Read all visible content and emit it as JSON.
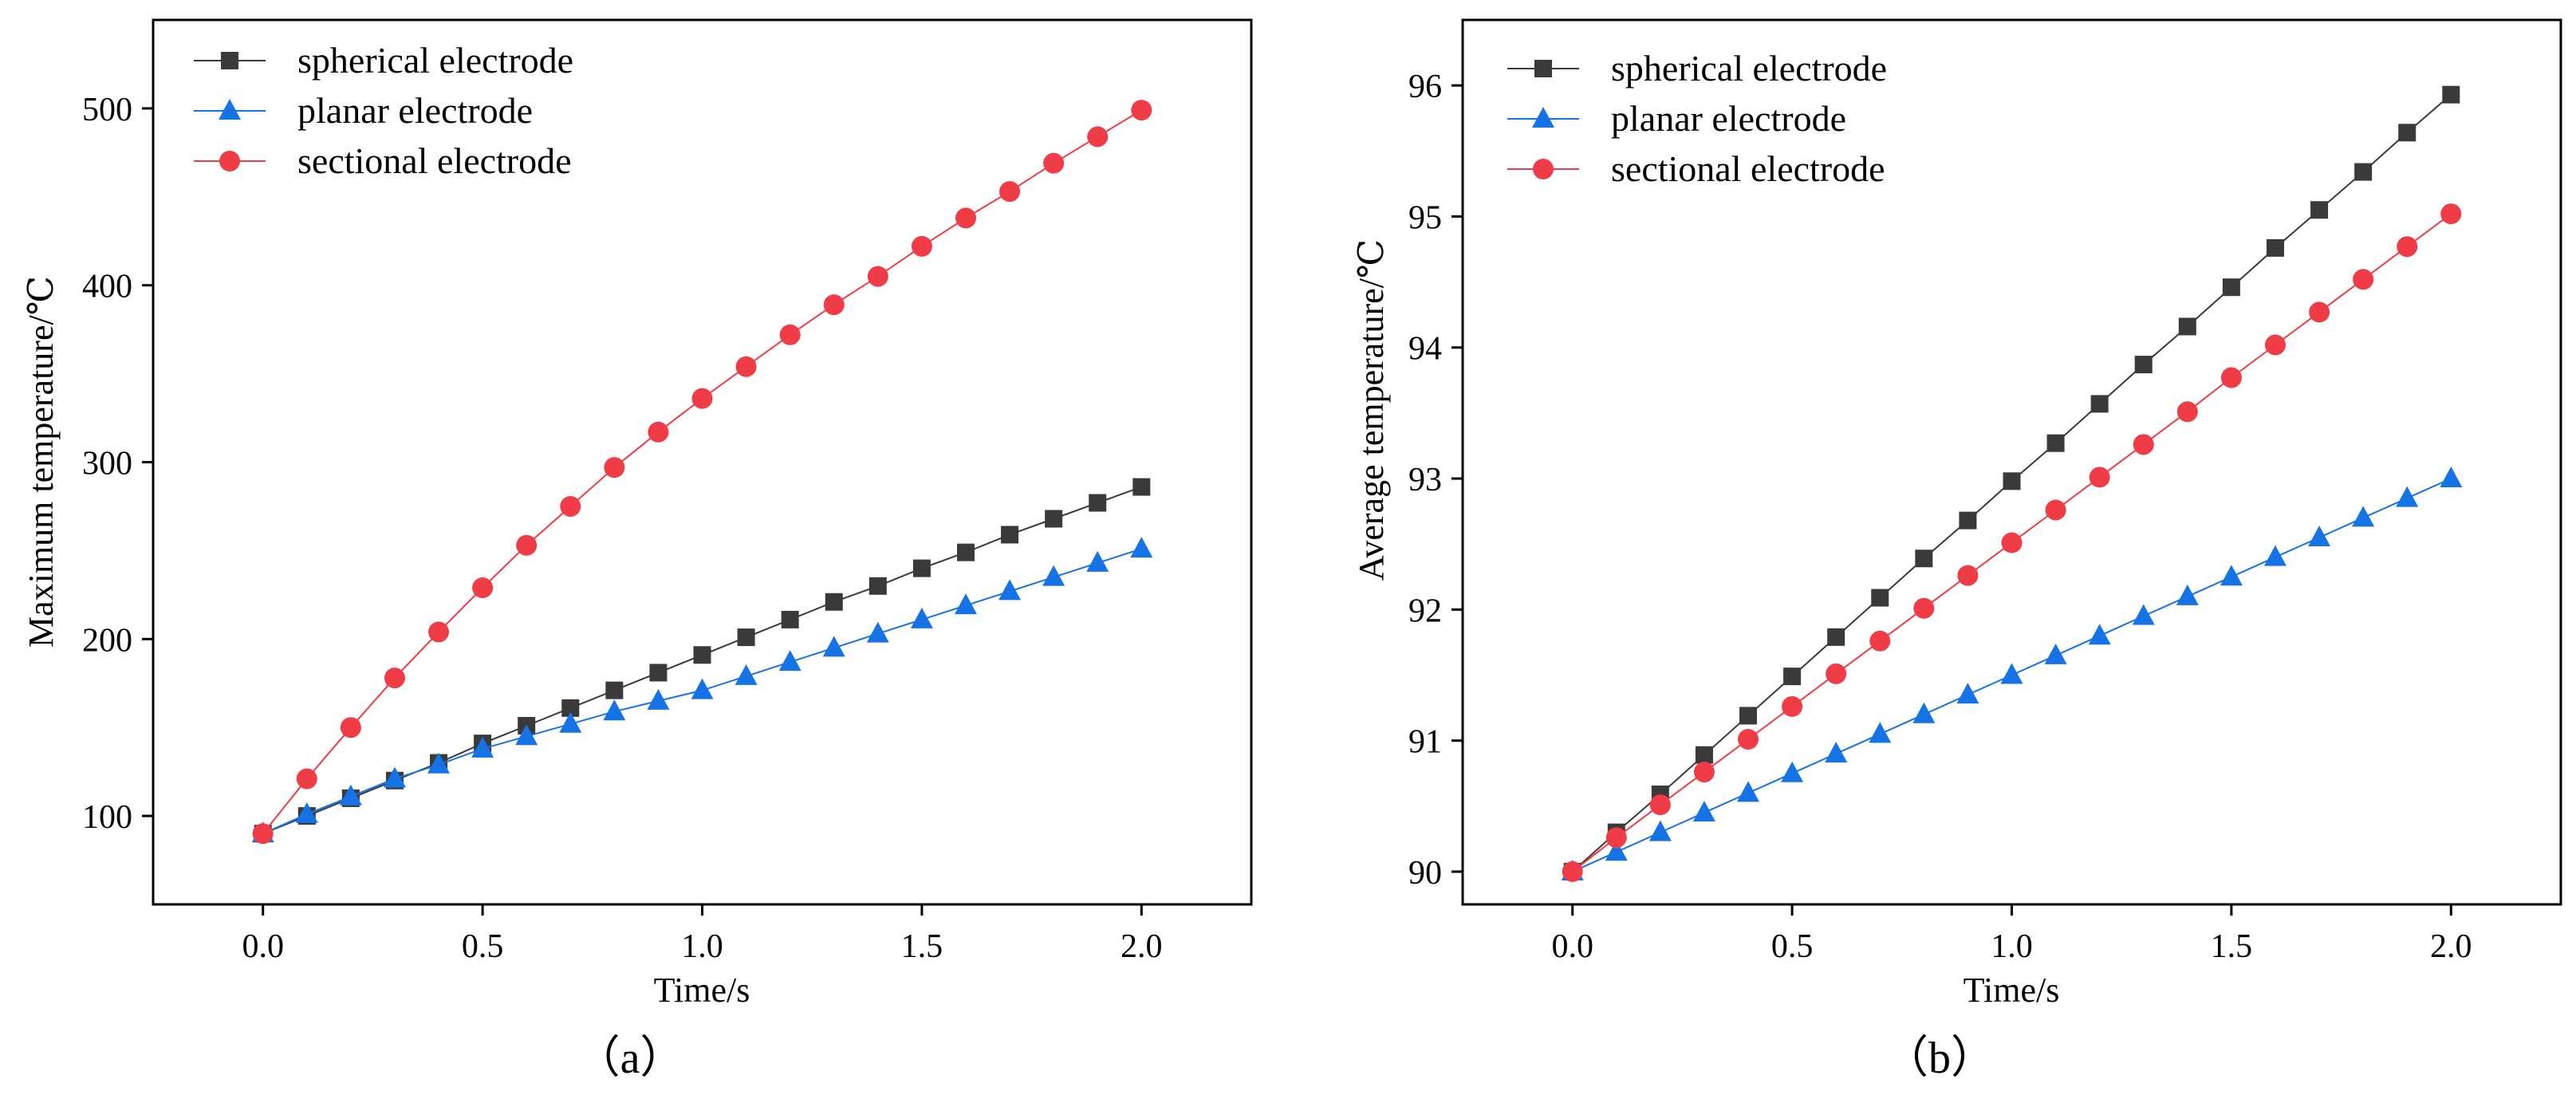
{
  "chart_data": [
    {
      "type": "line",
      "caption": "（a）",
      "xlabel": "Time/s",
      "ylabel": "Maximum temperature/℃",
      "xlim": [
        -0.25,
        2.25
      ],
      "ylim": [
        50,
        550
      ],
      "x_ticks": [
        "0.0",
        "0.5",
        "1.0",
        "1.5",
        "2.0"
      ],
      "y_ticks": [
        "100",
        "200",
        "300",
        "400",
        "500"
      ],
      "legend_position": "top-left",
      "x": [
        0.0,
        0.1,
        0.2,
        0.3,
        0.4,
        0.5,
        0.6,
        0.7,
        0.8,
        0.9,
        1.0,
        1.1,
        1.2,
        1.3,
        1.4,
        1.5,
        1.6,
        1.7,
        1.8,
        1.9,
        2.0
      ],
      "series": [
        {
          "name": "spherical electrode",
          "marker": "square",
          "color": "#3a3a3a",
          "values": [
            90,
            100,
            110,
            120,
            130,
            141,
            151,
            161,
            171,
            181,
            191,
            201,
            211,
            221,
            230,
            240,
            249,
            259,
            268,
            277,
            286
          ]
        },
        {
          "name": "planar electrode",
          "marker": "triangle",
          "color": "#1673e6",
          "values": [
            90,
            101,
            111,
            121,
            129,
            138,
            145,
            152,
            159,
            165,
            171,
            179,
            187,
            195,
            203,
            211,
            219,
            227,
            235,
            243,
            251
          ]
        },
        {
          "name": "sectional electrode",
          "marker": "circle",
          "color": "#f03c46",
          "values": [
            90,
            121,
            150,
            178,
            204,
            229,
            253,
            275,
            297,
            317,
            336,
            354,
            372,
            389,
            405,
            422,
            438,
            453,
            469,
            484,
            499
          ]
        }
      ]
    },
    {
      "type": "line",
      "caption": "（b）",
      "xlabel": "Time/s",
      "ylabel": "Average temperature/℃",
      "xlim": [
        -0.25,
        2.25
      ],
      "ylim": [
        89.75,
        96.5
      ],
      "x_ticks": [
        "0.0",
        "0.5",
        "1.0",
        "1.5",
        "2.0"
      ],
      "y_ticks": [
        "90",
        "91",
        "92",
        "93",
        "94",
        "95",
        "96"
      ],
      "legend_position": "top-left",
      "x": [
        0.0,
        0.1,
        0.2,
        0.3,
        0.4,
        0.5,
        0.6,
        0.7,
        0.8,
        0.9,
        1.0,
        1.1,
        1.2,
        1.3,
        1.4,
        1.5,
        1.6,
        1.7,
        1.8,
        1.9,
        2.0
      ],
      "series": [
        {
          "name": "spherical electrode",
          "marker": "square",
          "color": "#3a3a3a",
          "values": [
            90.0,
            90.3,
            90.59,
            90.89,
            91.19,
            91.49,
            91.79,
            92.09,
            92.39,
            92.68,
            92.98,
            93.27,
            93.57,
            93.87,
            94.16,
            94.46,
            94.76,
            95.05,
            95.34,
            95.64,
            95.93
          ]
        },
        {
          "name": "planar electrode",
          "marker": "triangle",
          "color": "#1673e6",
          "values": [
            90.0,
            90.15,
            90.3,
            90.45,
            90.6,
            90.75,
            90.9,
            91.05,
            91.2,
            91.35,
            91.5,
            91.65,
            91.8,
            91.95,
            92.1,
            92.25,
            92.4,
            92.55,
            92.7,
            92.85,
            93.0
          ]
        },
        {
          "name": "sectional electrode",
          "marker": "circle",
          "color": "#f03c46",
          "values": [
            90.0,
            90.26,
            90.51,
            90.76,
            91.01,
            91.26,
            91.51,
            91.76,
            92.01,
            92.26,
            92.51,
            92.76,
            93.01,
            93.26,
            93.51,
            93.77,
            94.02,
            94.27,
            94.52,
            94.77,
            95.02
          ]
        }
      ]
    }
  ]
}
